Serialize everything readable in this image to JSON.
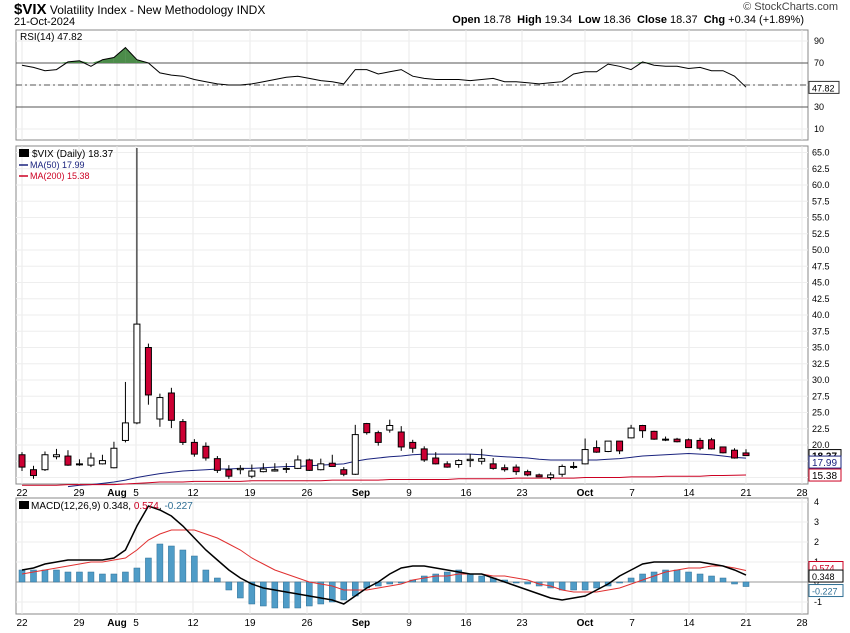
{
  "header": {
    "symbol": "$VIX",
    "name": "Volatility Index - New Methodology",
    "exchange": "INDX",
    "date": "21-Oct-2024",
    "brand": "© StockCharts.com",
    "open_label": "Open",
    "open": "18.78",
    "high_label": "High",
    "high": "19.34",
    "low_label": "Low",
    "low": "18.36",
    "close_label": "Close",
    "close": "18.37",
    "chg_label": "Chg",
    "chg": "+0.34 (+1.89%)"
  },
  "colors": {
    "up_candle": "#ffffff",
    "down_candle": "#cc0033",
    "ma50": "#1a237e",
    "ma200": "#cc0022",
    "macd_line": "#000000",
    "signal_line": "#e03030",
    "histogram": "#4f9cc7",
    "rsi_line": "#000000",
    "rsi_fill": "#4c8c4a"
  },
  "chart_data": [
    {
      "type": "line",
      "title": "RSI(14) 47.82",
      "legend": "RSI(14) 47.82",
      "ylim": [
        0,
        100
      ],
      "yticks": [
        10,
        30,
        50,
        70,
        90
      ],
      "reference_lines": [
        30,
        50,
        70
      ],
      "last_value_label": "47.82",
      "values": [
        68,
        66,
        63,
        64,
        71,
        72,
        67,
        73,
        75,
        84,
        73,
        70,
        61,
        59,
        58,
        55,
        53,
        51,
        50,
        50,
        51,
        53,
        55,
        57,
        58,
        56,
        54,
        53,
        51,
        64,
        64,
        60,
        62,
        64,
        58,
        56,
        55,
        55,
        55,
        54,
        55,
        56,
        53,
        53,
        52,
        51,
        52,
        53,
        60,
        62,
        62,
        69,
        67,
        64,
        71,
        68,
        67,
        67,
        65,
        66,
        63,
        63,
        58,
        48
      ]
    },
    {
      "type": "line",
      "subtype": "candlestick",
      "legend": [
        {
          "name": "$VIX (Daily)",
          "value": "18.37"
        },
        {
          "name": "MA(50)",
          "value": "17.99"
        },
        {
          "name": "MA(200)",
          "value": "15.38"
        }
      ],
      "ylim": [
        14,
        66
      ],
      "yticks": [
        "15.0",
        "17.5",
        "20.0",
        "22.5",
        "25.0",
        "27.5",
        "30.0",
        "32.5",
        "35.0",
        "37.5",
        "40.0",
        "42.5",
        "45.0",
        "47.5",
        "50.0",
        "52.5",
        "55.0",
        "57.5",
        "60.0",
        "62.5",
        "65.0"
      ],
      "price_tags": [
        "18.37",
        "17.99",
        "15.38"
      ],
      "x_labels": [
        "22",
        "29",
        "Aug",
        "5",
        "12",
        "19",
        "26",
        "Sep",
        "9",
        "16",
        "23",
        "Oct",
        "7",
        "14",
        "21",
        "28"
      ],
      "ohlc": [
        {
          "o": 18.5,
          "h": 18.9,
          "l": 16.0,
          "c": 16.6
        },
        {
          "o": 16.2,
          "h": 16.8,
          "l": 14.8,
          "c": 15.3
        },
        {
          "o": 16.2,
          "h": 19.0,
          "l": 16.0,
          "c": 18.5
        },
        {
          "o": 18.2,
          "h": 19.4,
          "l": 17.8,
          "c": 18.5
        },
        {
          "o": 18.3,
          "h": 19.2,
          "l": 16.8,
          "c": 16.9
        },
        {
          "o": 17.0,
          "h": 17.8,
          "l": 16.8,
          "c": 17.1
        },
        {
          "o": 16.9,
          "h": 18.8,
          "l": 16.6,
          "c": 18.0
        },
        {
          "o": 17.1,
          "h": 18.5,
          "l": 17.0,
          "c": 17.6
        },
        {
          "o": 16.5,
          "h": 20.5,
          "l": 16.4,
          "c": 19.5
        },
        {
          "o": 20.7,
          "h": 29.7,
          "l": 20.4,
          "c": 23.4
        },
        {
          "o": 23.4,
          "h": 65.7,
          "l": 23.2,
          "c": 38.6
        },
        {
          "o": 35.0,
          "h": 35.6,
          "l": 26.2,
          "c": 27.7
        },
        {
          "o": 24.0,
          "h": 27.9,
          "l": 22.8,
          "c": 27.3
        },
        {
          "o": 28.0,
          "h": 28.8,
          "l": 22.6,
          "c": 23.8
        },
        {
          "o": 23.6,
          "h": 24.0,
          "l": 20.0,
          "c": 20.4
        },
        {
          "o": 20.4,
          "h": 20.9,
          "l": 18.2,
          "c": 18.6
        },
        {
          "o": 19.8,
          "h": 20.4,
          "l": 17.6,
          "c": 18.0
        },
        {
          "o": 17.9,
          "h": 18.3,
          "l": 15.7,
          "c": 16.1
        },
        {
          "o": 16.2,
          "h": 16.9,
          "l": 14.8,
          "c": 15.2
        },
        {
          "o": 16.2,
          "h": 16.9,
          "l": 15.5,
          "c": 16.4
        },
        {
          "o": 15.2,
          "h": 17.0,
          "l": 14.9,
          "c": 16.0
        },
        {
          "o": 15.9,
          "h": 17.2,
          "l": 15.8,
          "c": 16.3
        },
        {
          "o": 16.0,
          "h": 17.2,
          "l": 15.9,
          "c": 16.2
        },
        {
          "o": 16.3,
          "h": 17.2,
          "l": 15.7,
          "c": 16.4
        },
        {
          "o": 16.4,
          "h": 18.4,
          "l": 16.3,
          "c": 17.7
        },
        {
          "o": 17.7,
          "h": 17.9,
          "l": 16.0,
          "c": 16.1
        },
        {
          "o": 16.2,
          "h": 17.9,
          "l": 16.1,
          "c": 17.1
        },
        {
          "o": 17.2,
          "h": 18.5,
          "l": 16.7,
          "c": 16.7
        },
        {
          "o": 16.2,
          "h": 16.6,
          "l": 15.2,
          "c": 15.5
        },
        {
          "o": 15.5,
          "h": 23.1,
          "l": 15.4,
          "c": 21.6
        },
        {
          "o": 23.3,
          "h": 23.4,
          "l": 21.6,
          "c": 21.9
        },
        {
          "o": 21.9,
          "h": 22.2,
          "l": 19.9,
          "c": 20.4
        },
        {
          "o": 22.3,
          "h": 23.9,
          "l": 21.9,
          "c": 23.0
        },
        {
          "o": 22.0,
          "h": 22.9,
          "l": 19.1,
          "c": 19.7
        },
        {
          "o": 20.4,
          "h": 20.8,
          "l": 18.8,
          "c": 19.5
        },
        {
          "o": 19.4,
          "h": 19.8,
          "l": 17.4,
          "c": 17.7
        },
        {
          "o": 18.0,
          "h": 18.9,
          "l": 17.0,
          "c": 17.1
        },
        {
          "o": 17.1,
          "h": 17.5,
          "l": 16.5,
          "c": 16.6
        },
        {
          "o": 17.0,
          "h": 17.8,
          "l": 16.5,
          "c": 17.6
        },
        {
          "o": 17.6,
          "h": 18.6,
          "l": 16.6,
          "c": 17.8
        },
        {
          "o": 17.5,
          "h": 19.4,
          "l": 17.0,
          "c": 17.9
        },
        {
          "o": 17.1,
          "h": 18.0,
          "l": 16.2,
          "c": 16.4
        },
        {
          "o": 16.5,
          "h": 17.0,
          "l": 15.9,
          "c": 16.2
        },
        {
          "o": 16.6,
          "h": 17.0,
          "l": 15.4,
          "c": 15.9
        },
        {
          "o": 15.9,
          "h": 16.2,
          "l": 15.2,
          "c": 15.4
        },
        {
          "o": 15.4,
          "h": 15.6,
          "l": 15.1,
          "c": 15.1
        },
        {
          "o": 15.0,
          "h": 15.8,
          "l": 14.6,
          "c": 15.4
        },
        {
          "o": 15.5,
          "h": 17.0,
          "l": 15.1,
          "c": 16.7
        },
        {
          "o": 16.6,
          "h": 17.4,
          "l": 16.3,
          "c": 16.7
        },
        {
          "o": 17.1,
          "h": 21.0,
          "l": 17.0,
          "c": 19.3
        },
        {
          "o": 19.6,
          "h": 20.7,
          "l": 18.8,
          "c": 18.9
        },
        {
          "o": 19.0,
          "h": 20.6,
          "l": 18.9,
          "c": 20.6
        },
        {
          "o": 20.6,
          "h": 20.6,
          "l": 18.6,
          "c": 19.1
        },
        {
          "o": 21.1,
          "h": 23.1,
          "l": 21.0,
          "c": 22.6
        },
        {
          "o": 23.0,
          "h": 23.1,
          "l": 21.1,
          "c": 22.2
        },
        {
          "o": 22.1,
          "h": 22.2,
          "l": 20.8,
          "c": 20.9
        },
        {
          "o": 20.9,
          "h": 21.3,
          "l": 20.6,
          "c": 20.9
        },
        {
          "o": 20.9,
          "h": 21.1,
          "l": 20.4,
          "c": 20.5
        },
        {
          "o": 20.8,
          "h": 21.0,
          "l": 19.6,
          "c": 19.6
        },
        {
          "o": 20.7,
          "h": 21.1,
          "l": 19.2,
          "c": 19.5
        },
        {
          "o": 20.8,
          "h": 21.1,
          "l": 19.3,
          "c": 19.4
        },
        {
          "o": 19.7,
          "h": 19.7,
          "l": 18.7,
          "c": 18.8
        },
        {
          "o": 19.2,
          "h": 19.5,
          "l": 17.9,
          "c": 18.0
        },
        {
          "o": 18.78,
          "h": 19.34,
          "l": 18.36,
          "c": 18.37
        }
      ],
      "series": [
        {
          "name": "MA(50)",
          "values": [
            null,
            null,
            null,
            null,
            13.6,
            13.8,
            13.9,
            14.1,
            14.3,
            14.6,
            15.0,
            15.3,
            15.6,
            15.8,
            16.0,
            16.1,
            16.2,
            16.3,
            16.3,
            16.4,
            16.4,
            16.5,
            16.6,
            16.7,
            16.7,
            16.8,
            16.9,
            17.0,
            17.1,
            17.5,
            17.8,
            18.0,
            18.2,
            18.3,
            18.5,
            18.6,
            18.6,
            18.6,
            18.6,
            18.6,
            18.5,
            18.3,
            18.2,
            18.1,
            18.0,
            17.8,
            17.7,
            17.7,
            17.7,
            17.7,
            17.7,
            17.8,
            17.9,
            18.1,
            18.3,
            18.4,
            18.5,
            18.6,
            18.7,
            18.6,
            18.5,
            18.3,
            18.1,
            17.99
          ]
        },
        {
          "name": "MA(200)",
          "values": [
            13.8,
            13.8,
            13.8,
            13.8,
            13.9,
            13.9,
            13.9,
            13.9,
            13.9,
            14.0,
            14.1,
            14.2,
            14.3,
            14.3,
            14.3,
            14.4,
            14.4,
            14.4,
            14.4,
            14.4,
            14.5,
            14.5,
            14.5,
            14.5,
            14.5,
            14.5,
            14.5,
            14.6,
            14.6,
            14.6,
            14.6,
            14.6,
            14.7,
            14.7,
            14.7,
            14.7,
            14.7,
            14.7,
            14.8,
            14.8,
            14.8,
            14.8,
            14.8,
            14.9,
            14.9,
            14.9,
            14.9,
            14.9,
            14.9,
            15.0,
            15.0,
            15.0,
            15.0,
            15.1,
            15.1,
            15.1,
            15.2,
            15.2,
            15.2,
            15.2,
            15.3,
            15.3,
            15.35,
            15.38
          ]
        }
      ]
    },
    {
      "type": "line",
      "title": "MACD(12,26,9) 0.348, 0.574, -0.227",
      "legend": {
        "label": "MACD(12,26,9)",
        "macd": "0.348",
        "signal": "0.574",
        "hist": "-0.227"
      },
      "ylim": [
        -1.6,
        4.2
      ],
      "yticks": [
        "4",
        "3",
        "2",
        "1",
        "0",
        "-1"
      ],
      "price_tags": [
        "0.574",
        "0.348",
        "-0.227"
      ],
      "x_labels": [
        "22",
        "29",
        "Aug",
        "5",
        "12",
        "19",
        "26",
        "Sep",
        "9",
        "16",
        "23",
        "Oct",
        "7",
        "14",
        "21",
        "28"
      ],
      "series": [
        {
          "name": "MACD",
          "values": [
            0.6,
            0.7,
            0.9,
            1.0,
            1.1,
            1.1,
            1.1,
            1.1,
            1.2,
            1.6,
            2.8,
            3.8,
            3.6,
            3.3,
            2.8,
            2.2,
            1.6,
            1.1,
            0.6,
            0.2,
            -0.1,
            -0.3,
            -0.4,
            -0.5,
            -0.6,
            -0.7,
            -0.8,
            -0.9,
            -1.1,
            -0.7,
            -0.3,
            0.0,
            0.4,
            0.7,
            0.8,
            0.8,
            0.7,
            0.6,
            0.5,
            0.4,
            0.4,
            0.2,
            0.0,
            -0.2,
            -0.4,
            -0.6,
            -0.8,
            -0.9,
            -0.8,
            -0.7,
            -0.4,
            -0.1,
            0.3,
            0.6,
            0.9,
            1.0,
            1.0,
            1.0,
            1.0,
            1.0,
            0.9,
            0.8,
            0.6,
            0.348
          ]
        },
        {
          "name": "Signal",
          "values": [
            0.4,
            0.5,
            0.6,
            0.7,
            0.8,
            0.9,
            1.0,
            1.0,
            1.1,
            1.2,
            1.6,
            2.1,
            2.4,
            2.6,
            2.6,
            2.6,
            2.4,
            2.2,
            1.9,
            1.6,
            1.2,
            0.9,
            0.6,
            0.4,
            0.2,
            0.0,
            -0.1,
            -0.2,
            -0.4,
            -0.4,
            -0.4,
            -0.3,
            -0.2,
            -0.1,
            0.1,
            0.2,
            0.3,
            0.3,
            0.4,
            0.4,
            0.4,
            0.3,
            0.3,
            0.2,
            0.1,
            -0.1,
            -0.2,
            -0.4,
            -0.5,
            -0.5,
            -0.5,
            -0.4,
            -0.3,
            -0.1,
            0.1,
            0.3,
            0.5,
            0.6,
            0.7,
            0.7,
            0.8,
            0.8,
            0.7,
            0.574
          ]
        },
        {
          "name": "Histogram",
          "values": [
            0.6,
            0.6,
            0.6,
            0.6,
            0.5,
            0.5,
            0.5,
            0.4,
            0.4,
            0.5,
            0.7,
            1.2,
            1.9,
            1.8,
            1.6,
            1.3,
            0.6,
            0.2,
            -0.4,
            -0.8,
            -1.1,
            -1.2,
            -1.3,
            -1.3,
            -1.3,
            -1.2,
            -1.1,
            -1.0,
            -0.9,
            -0.7,
            -0.3,
            -0.2,
            -0.1,
            0.0,
            0.1,
            0.3,
            0.4,
            0.5,
            0.6,
            0.4,
            0.3,
            0.2,
            0.1,
            0.0,
            -0.1,
            -0.2,
            -0.3,
            -0.4,
            -0.4,
            -0.4,
            -0.3,
            -0.2,
            0.0,
            0.2,
            0.4,
            0.5,
            0.6,
            0.6,
            0.5,
            0.4,
            0.3,
            0.2,
            -0.1,
            -0.227
          ]
        }
      ]
    }
  ]
}
